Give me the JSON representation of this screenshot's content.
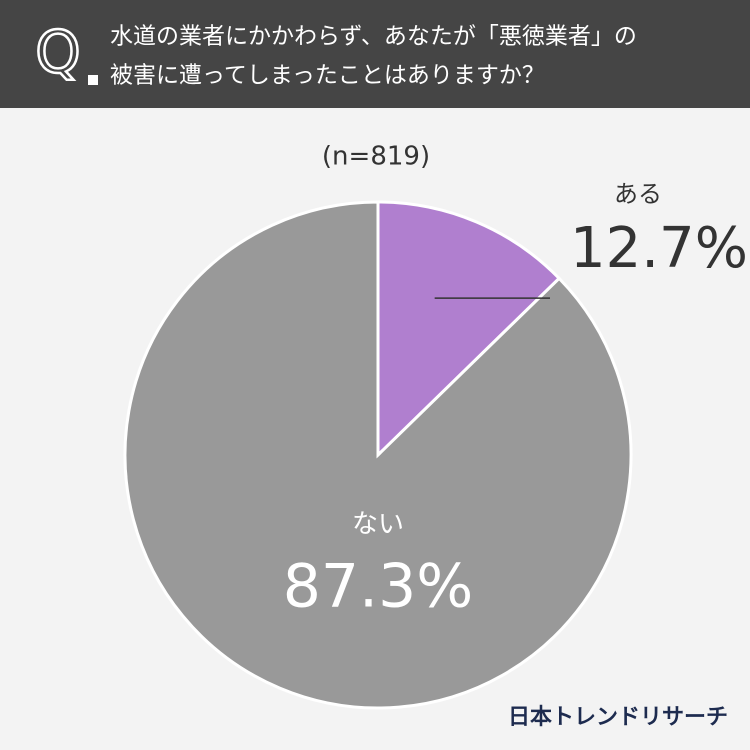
{
  "chart_data": {
    "type": "pie",
    "question_mark": "Q",
    "title": [
      "水道の業者にかかわらず、あなたが「悪徳業者」の",
      "被害に遭ってしまったことはありますか？"
    ],
    "subtitle": "(n=819)",
    "categories": [
      "ある",
      "ない"
    ],
    "values": [
      12.7,
      87.3
    ],
    "value_labels": [
      "12.7%",
      "87.3%"
    ],
    "colors": [
      "#b07fcf",
      "#999999"
    ],
    "source": "日本トレンドリサーチ"
  }
}
